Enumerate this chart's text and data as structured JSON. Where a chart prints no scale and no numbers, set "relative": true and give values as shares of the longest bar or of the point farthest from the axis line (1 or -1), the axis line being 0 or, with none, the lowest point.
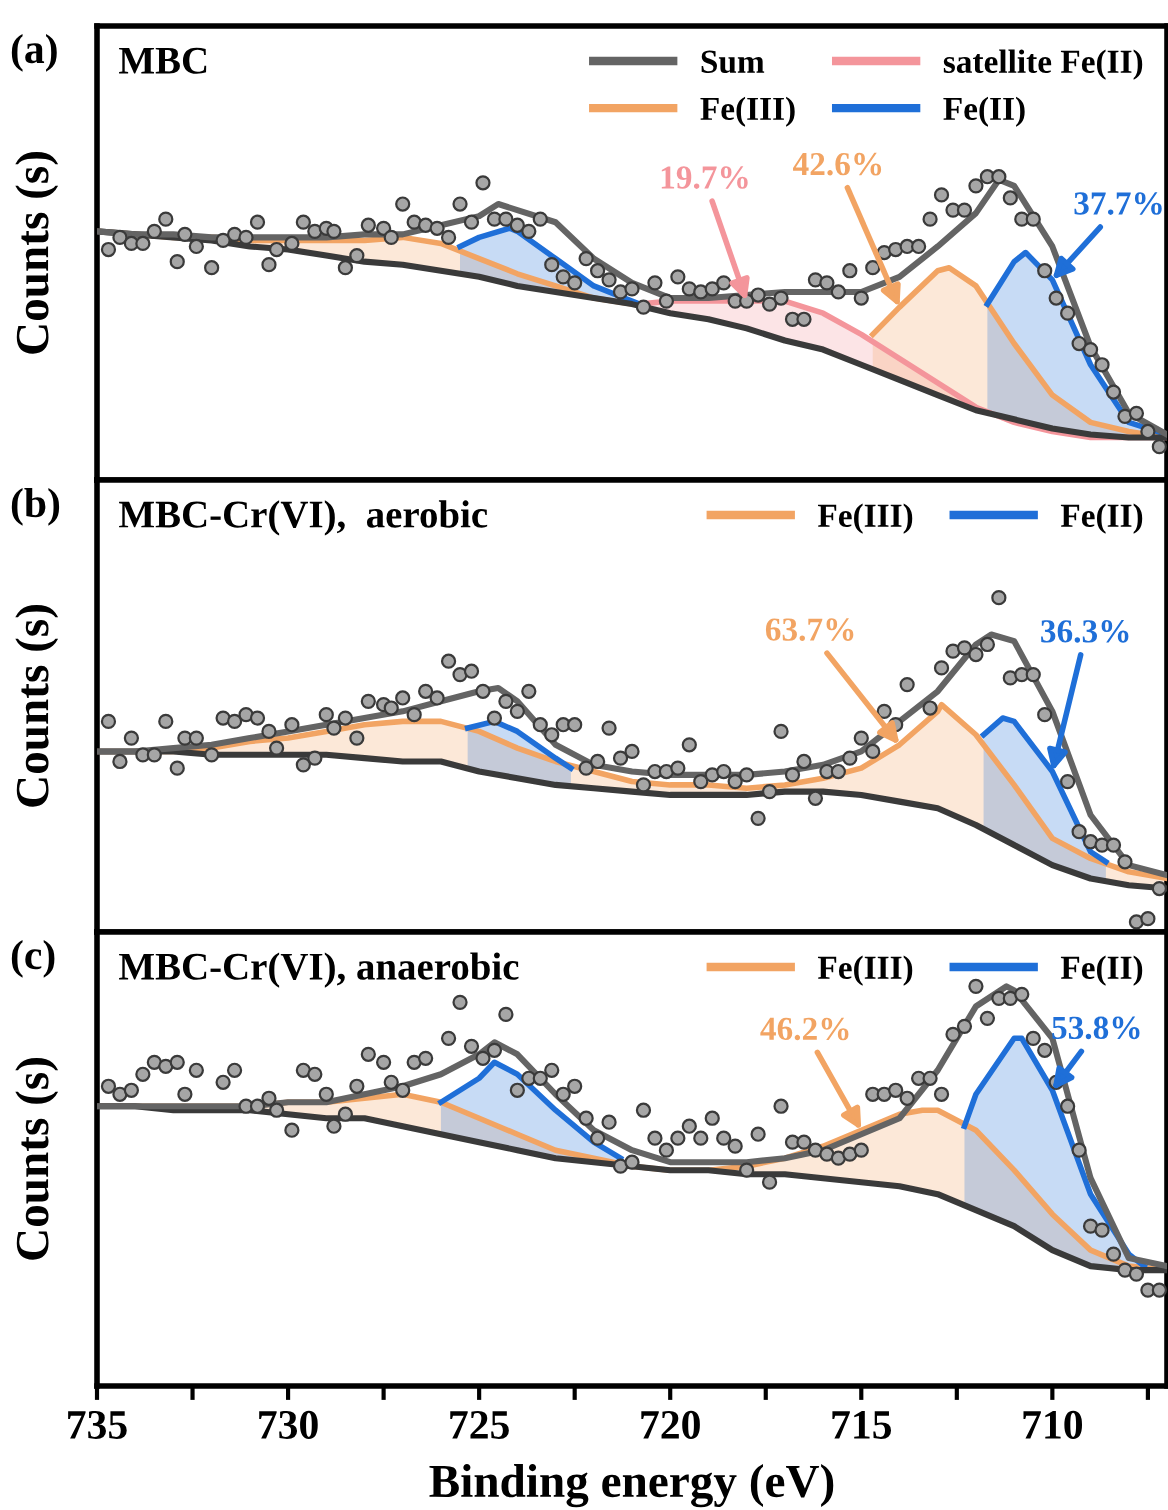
{
  "chart_data": [
    {
      "type": "line",
      "title": "MBC",
      "ylabel": "Counts (s)",
      "annotations": [
        "(a)",
        {
          "text": "19.7%",
          "x": 718,
          "y": 0.59
        },
        {
          "text": "42.6%",
          "x": 714,
          "y": 0.57
        },
        {
          "text": "37.7%",
          "x": 710,
          "y": 0.66
        }
      ],
      "relative": true,
      "xlim": [
        735,
        707
      ],
      "xticks": [
        735,
        730,
        725,
        720,
        715,
        710
      ],
      "tick_labels": false,
      "legend": "top right",
      "grid": false,
      "marker": "none",
      "line_style": "solid",
      "series": [
        {
          "type": "scatter",
          "marker": "circle",
          "color": "#a6a6a6",
          "x": [
            734.7,
            734.4,
            734.1,
            733.8,
            733.5,
            733.2,
            732.9,
            732.7,
            732.4,
            732.0,
            731.7,
            731.4,
            731.1,
            730.8,
            730.5,
            730.3,
            729.9,
            729.6,
            729.3,
            729.0,
            728.8,
            728.5,
            728.2,
            727.9,
            727.5,
            727.3,
            727.0,
            726.7,
            726.4,
            726.1,
            725.8,
            725.5,
            725.2,
            724.9,
            724.6,
            724.3,
            724.0,
            723.7,
            723.4,
            723.1,
            722.8,
            722.5,
            722.2,
            721.9,
            721.6,
            721.3,
            721.0,
            720.7,
            720.4,
            720.1,
            719.8,
            719.5,
            719.2,
            718.9,
            718.6,
            718.3,
            718.0,
            717.7,
            717.4,
            717.1,
            716.8,
            716.5,
            716.2,
            715.9,
            715.6,
            715.3,
            715.0,
            714.7,
            714.4,
            714.1,
            713.8,
            713.5,
            713.2,
            712.9,
            712.6,
            712.3,
            712.0,
            711.7,
            711.4,
            711.1,
            710.8,
            710.5,
            710.2,
            709.9,
            709.6,
            709.3,
            709.0,
            708.7,
            708.4,
            708.1,
            707.8,
            707.5,
            707.2
          ],
          "values": [
            0.76,
            0.8,
            0.78,
            0.78,
            0.82,
            0.86,
            0.72,
            0.81,
            0.77,
            0.7,
            0.79,
            0.81,
            0.8,
            0.85,
            0.71,
            0.76,
            0.78,
            0.85,
            0.82,
            0.83,
            0.82,
            0.7,
            0.74,
            0.84,
            0.83,
            0.8,
            0.91,
            0.85,
            0.84,
            0.83,
            0.8,
            0.91,
            0.85,
            0.98,
            0.86,
            0.86,
            0.84,
            0.82,
            0.86,
            0.71,
            0.67,
            0.65,
            0.73,
            0.69,
            0.66,
            0.62,
            0.63,
            0.57,
            0.65,
            0.59,
            0.67,
            0.63,
            0.62,
            0.63,
            0.65,
            0.59,
            0.59,
            0.61,
            0.58,
            0.6,
            0.53,
            0.53,
            0.66,
            0.65,
            0.62,
            0.69,
            0.6,
            0.7,
            0.75,
            0.76,
            0.77,
            0.77,
            0.86,
            0.94,
            0.89,
            0.89,
            0.97,
            1.0,
            1.0,
            0.93,
            0.86,
            0.86,
            0.69,
            0.6,
            0.55,
            0.45,
            0.43,
            0.38,
            0.29,
            0.21,
            0.22,
            0.16,
            0.11
          ]
        },
        {
          "type": "line",
          "color": "#3a3a3a",
          "x": [
            735,
            734,
            733,
            732,
            731,
            730,
            729,
            728,
            727,
            726,
            725,
            724,
            723,
            722,
            721,
            720,
            719,
            718,
            717,
            716,
            715,
            714,
            713,
            712,
            711,
            710,
            709,
            708,
            707
          ],
          "values": [
            0.82,
            0.81,
            0.8,
            0.79,
            0.77,
            0.76,
            0.74,
            0.72,
            0.71,
            0.69,
            0.67,
            0.64,
            0.62,
            0.6,
            0.58,
            0.55,
            0.53,
            0.5,
            0.46,
            0.43,
            0.38,
            0.33,
            0.28,
            0.23,
            0.2,
            0.17,
            0.15,
            0.14,
            0.14
          ]
        },
        {
          "type": "line",
          "name": "Sum",
          "color": "#646464",
          "x": [
            735,
            734,
            733,
            732,
            731,
            730,
            729,
            728,
            727,
            726,
            725,
            724.5,
            724,
            723,
            722,
            721,
            720,
            719,
            718,
            717,
            716,
            715,
            714,
            713,
            712,
            711.4,
            711,
            710,
            709,
            708,
            707
          ],
          "values": [
            0.82,
            0.81,
            0.81,
            0.8,
            0.8,
            0.8,
            0.8,
            0.81,
            0.81,
            0.84,
            0.87,
            0.91,
            0.89,
            0.85,
            0.73,
            0.65,
            0.6,
            0.6,
            0.61,
            0.62,
            0.62,
            0.62,
            0.67,
            0.77,
            0.88,
            0.99,
            0.97,
            0.77,
            0.44,
            0.22,
            0.15
          ]
        },
        {
          "type": "area",
          "name": "satellite Fe(II)",
          "color": "#f4959b",
          "x": [
            720.8,
            720,
            719,
            718,
            717,
            716,
            715,
            714,
            713,
            712,
            711,
            710,
            709,
            708,
            707
          ],
          "values": [
            0.58,
            0.59,
            0.59,
            0.59,
            0.59,
            0.55,
            0.48,
            0.4,
            0.32,
            0.24,
            0.19,
            0.16,
            0.14,
            0.14,
            0.14
          ]
        },
        {
          "type": "area",
          "name": "Fe(III)",
          "color": "#f2a463",
          "x": [
            735,
            734,
            733,
            732,
            731,
            730,
            729,
            728,
            727,
            726,
            725,
            724,
            723,
            722,
            721,
            720.8,
            null,
            714.7,
            714,
            713,
            712.7,
            712,
            711,
            710,
            709,
            708,
            707
          ],
          "values": [
            0.82,
            0.81,
            0.8,
            0.8,
            0.79,
            0.79,
            0.79,
            0.79,
            0.8,
            0.78,
            0.73,
            0.68,
            0.64,
            0.6,
            0.58,
            0.58,
            null,
            0.48,
            0.57,
            0.69,
            0.7,
            0.64,
            0.45,
            0.28,
            0.19,
            0.16,
            0.14
          ]
        },
        {
          "type": "area",
          "name": "Fe(II)",
          "color": "#1f6fd8",
          "x": [
            725.5,
            725,
            724.2,
            724,
            723,
            722,
            721,
            720.8,
            null,
            711.7,
            711,
            710.7,
            710,
            709,
            708,
            707
          ],
          "values": [
            0.77,
            0.8,
            0.83,
            0.82,
            0.73,
            0.64,
            0.59,
            0.58,
            null,
            0.58,
            0.72,
            0.75,
            0.66,
            0.38,
            0.19,
            0.15
          ]
        }
      ]
    },
    {
      "type": "line",
      "title": "MBC-Cr(VI),  aerobic",
      "ylabel": "Counts (s)",
      "annotations": [
        "(b)",
        {
          "text": "63.7%",
          "x": 714,
          "y": 0.56
        },
        {
          "text": "36.3%",
          "x": 710,
          "y": 0.48
        }
      ],
      "relative": true,
      "xlim": [
        735,
        707
      ],
      "xticks": [
        735,
        730,
        725,
        720,
        715,
        710
      ],
      "tick_labels": false,
      "legend": "top right",
      "grid": false,
      "marker": "none",
      "line_style": "solid",
      "series": [
        {
          "type": "scatter",
          "marker": "circle",
          "color": "#a6a6a6",
          "x": [
            734.7,
            734.4,
            734.1,
            733.8,
            733.5,
            733.2,
            732.9,
            732.7,
            732.4,
            732.0,
            731.7,
            731.4,
            731.1,
            730.8,
            730.5,
            730.3,
            729.9,
            729.6,
            729.3,
            729.0,
            728.8,
            728.5,
            728.2,
            727.9,
            727.5,
            727.3,
            727.0,
            726.7,
            726.4,
            726.1,
            725.8,
            725.5,
            725.2,
            724.9,
            724.6,
            724.3,
            724.0,
            723.7,
            723.4,
            723.1,
            722.8,
            722.5,
            722.2,
            721.9,
            721.6,
            721.3,
            721.0,
            720.7,
            720.4,
            720.1,
            719.8,
            719.5,
            719.2,
            718.9,
            718.6,
            718.3,
            718.0,
            717.7,
            717.4,
            717.1,
            716.8,
            716.5,
            716.2,
            715.9,
            715.6,
            715.3,
            715.0,
            714.7,
            714.4,
            714.1,
            713.8,
            713.2,
            712.9,
            712.6,
            712.3,
            712.0,
            711.7,
            711.4,
            711.1,
            710.8,
            710.5,
            710.2,
            709.6,
            709.3,
            709.0,
            708.7,
            708.4,
            708.1,
            707.8,
            707.5,
            707.2
          ],
          "values": [
            0.63,
            0.51,
            0.58,
            0.53,
            0.53,
            0.63,
            0.49,
            0.58,
            0.58,
            0.53,
            0.64,
            0.63,
            0.65,
            0.64,
            0.6,
            0.55,
            0.62,
            0.5,
            0.52,
            0.65,
            0.61,
            0.64,
            0.58,
            0.69,
            0.68,
            0.67,
            0.7,
            0.65,
            0.72,
            0.7,
            0.81,
            0.77,
            0.78,
            0.72,
            0.64,
            0.69,
            0.66,
            0.72,
            0.62,
            0.59,
            0.62,
            0.62,
            0.49,
            0.51,
            0.61,
            0.52,
            0.54,
            0.44,
            0.48,
            0.48,
            0.49,
            0.56,
            0.45,
            0.47,
            0.48,
            0.45,
            0.47,
            0.34,
            0.42,
            0.6,
            0.47,
            0.51,
            0.4,
            0.48,
            0.48,
            0.52,
            0.58,
            0.54,
            0.66,
            0.62,
            0.74,
            0.67,
            0.79,
            0.84,
            0.85,
            0.83,
            0.86,
            1.0,
            0.76,
            0.77,
            0.77,
            0.65,
            0.45,
            0.3,
            0.27,
            0.26,
            0.26,
            0.21,
            0.03,
            0.04,
            0.13
          ]
        },
        {
          "type": "line",
          "color": "#3a3a3a",
          "x": [
            735,
            734,
            733,
            732,
            731,
            730,
            729,
            728,
            727,
            726,
            725,
            724,
            723,
            722,
            721,
            720,
            719,
            718,
            717,
            716,
            715,
            714,
            713,
            712,
            711,
            710,
            709,
            708,
            707
          ],
          "values": [
            0.54,
            0.54,
            0.54,
            0.53,
            0.53,
            0.53,
            0.53,
            0.52,
            0.51,
            0.51,
            0.48,
            0.46,
            0.44,
            0.43,
            0.42,
            0.41,
            0.41,
            0.41,
            0.42,
            0.42,
            0.41,
            0.39,
            0.37,
            0.32,
            0.26,
            0.2,
            0.16,
            0.14,
            0.13
          ]
        },
        {
          "type": "area",
          "name": "Fe(III)",
          "color": "#f2a463",
          "x": [
            735,
            734,
            733,
            732,
            731,
            730,
            729,
            728,
            727,
            726,
            725,
            724,
            723,
            722,
            721,
            720,
            719,
            718,
            717,
            716,
            715,
            714,
            713,
            712.9,
            712,
            711,
            710,
            709,
            708,
            707
          ],
          "values": [
            0.54,
            0.54,
            0.54,
            0.55,
            0.57,
            0.58,
            0.6,
            0.62,
            0.63,
            0.63,
            0.6,
            0.55,
            0.51,
            0.48,
            0.45,
            0.44,
            0.44,
            0.43,
            0.44,
            0.46,
            0.49,
            0.56,
            0.66,
            0.68,
            0.59,
            0.44,
            0.28,
            0.22,
            0.18,
            0.16
          ]
        },
        {
          "type": "area",
          "name": "Fe(II)",
          "color": "#1f6fd8",
          "x": [
            725.3,
            724.6,
            724,
            723,
            722.6,
            null,
            711.8,
            711.3,
            711,
            710,
            709,
            708.6
          ],
          "values": [
            0.61,
            0.63,
            0.6,
            0.52,
            0.49,
            null,
            0.59,
            0.64,
            0.63,
            0.48,
            0.24,
            0.21
          ]
        },
        {
          "type": "line",
          "color": "#646464",
          "x": [
            735,
            734,
            733,
            732,
            731,
            730,
            729,
            728,
            727,
            726,
            725,
            724.5,
            724,
            723,
            722,
            721,
            720,
            719,
            718,
            717,
            716,
            715,
            714,
            713,
            712,
            711.6,
            711,
            710,
            709,
            708,
            707
          ],
          "values": [
            0.54,
            0.54,
            0.55,
            0.56,
            0.58,
            0.6,
            0.62,
            0.64,
            0.66,
            0.69,
            0.72,
            0.73,
            0.69,
            0.56,
            0.5,
            0.48,
            0.47,
            0.47,
            0.47,
            0.48,
            0.5,
            0.54,
            0.63,
            0.72,
            0.86,
            0.89,
            0.87,
            0.66,
            0.35,
            0.2,
            0.17
          ]
        }
      ]
    },
    {
      "type": "line",
      "title": "MBC-Cr(VI), anaerobic",
      "ylabel": "Counts (s)",
      "xlabel": "Binding energy (eV)",
      "annotations": [
        "(c)",
        {
          "text": "46.2%",
          "x": 715,
          "y": 0.64
        },
        {
          "text": "53.8%",
          "x": 710,
          "y": 0.74
        }
      ],
      "relative": true,
      "xlim": [
        735,
        707
      ],
      "xticks": [
        735,
        {
          "value": 732.5,
          "label": null
        },
        730,
        {
          "value": 727.5,
          "label": null
        },
        725,
        {
          "value": 722.5,
          "label": null
        },
        720,
        {
          "value": 717.5,
          "label": null
        },
        715,
        {
          "value": 712.5,
          "label": null
        },
        710,
        {
          "value": 707.5,
          "label": null
        }
      ],
      "tick_labels": "x",
      "legend": "top right",
      "grid": false,
      "marker": "none",
      "line_style": "solid",
      "series": [
        {
          "type": "scatter",
          "marker": "circle",
          "color": "#a6a6a6",
          "x": [
            734.7,
            734.4,
            734.1,
            733.8,
            733.5,
            733.2,
            732.9,
            732.7,
            732.4,
            731.7,
            731.4,
            731.1,
            730.8,
            730.5,
            730.3,
            729.9,
            729.6,
            729.3,
            729.0,
            728.8,
            728.5,
            728.2,
            727.9,
            727.5,
            727.3,
            727.0,
            726.7,
            726.4,
            725.8,
            725.5,
            725.2,
            724.9,
            724.6,
            724.3,
            724.0,
            723.7,
            723.4,
            723.1,
            722.8,
            722.5,
            722.2,
            721.9,
            721.6,
            721.3,
            721.0,
            720.7,
            720.4,
            720.1,
            719.8,
            719.5,
            719.2,
            718.9,
            718.6,
            718.3,
            718.0,
            717.7,
            717.4,
            717.1,
            716.8,
            716.5,
            716.2,
            715.9,
            715.6,
            715.3,
            715.0,
            714.7,
            714.4,
            714.1,
            713.8,
            713.5,
            713.2,
            712.9,
            712.6,
            712.3,
            712.0,
            711.7,
            711.4,
            711.1,
            710.8,
            710.5,
            710.2,
            709.9,
            709.6,
            709.3,
            709.0,
            708.7,
            708.4,
            708.1,
            707.8,
            707.5,
            707.2
          ],
          "values": [
            0.75,
            0.73,
            0.74,
            0.78,
            0.81,
            0.8,
            0.81,
            0.73,
            0.79,
            0.76,
            0.79,
            0.7,
            0.7,
            0.72,
            0.69,
            0.64,
            0.79,
            0.78,
            0.73,
            0.65,
            0.68,
            0.75,
            0.83,
            0.81,
            0.76,
            0.74,
            0.81,
            0.82,
            0.87,
            0.96,
            0.85,
            0.82,
            0.84,
            0.93,
            0.74,
            0.77,
            0.77,
            0.79,
            0.73,
            0.75,
            0.67,
            0.62,
            0.66,
            0.55,
            0.56,
            0.69,
            0.62,
            0.59,
            0.62,
            0.65,
            0.62,
            0.67,
            0.62,
            0.6,
            0.54,
            0.63,
            0.51,
            0.7,
            0.61,
            0.61,
            0.59,
            0.58,
            0.57,
            0.58,
            0.59,
            0.73,
            0.73,
            0.74,
            0.72,
            0.77,
            0.77,
            0.73,
            0.88,
            0.9,
            1.0,
            0.92,
            0.97,
            0.97,
            0.98,
            0.87,
            0.84,
            0.76,
            0.7,
            0.59,
            0.4,
            0.39,
            0.33,
            0.29,
            0.28,
            0.24,
            0.24
          ]
        },
        {
          "type": "line",
          "color": "#3a3a3a",
          "x": [
            735,
            734,
            733,
            732,
            731,
            730,
            729,
            728,
            727,
            726,
            725,
            724,
            723,
            722,
            721,
            720,
            719,
            718,
            717,
            716,
            715,
            714,
            713,
            712,
            711,
            710,
            709,
            708,
            707
          ],
          "values": [
            0.7,
            0.7,
            0.69,
            0.69,
            0.69,
            0.68,
            0.67,
            0.67,
            0.65,
            0.63,
            0.61,
            0.59,
            0.57,
            0.56,
            0.55,
            0.54,
            0.54,
            0.53,
            0.53,
            0.52,
            0.51,
            0.5,
            0.48,
            0.44,
            0.4,
            0.34,
            0.3,
            0.29,
            0.29
          ]
        },
        {
          "type": "area",
          "name": "Fe(III)",
          "color": "#f2a463",
          "x": [
            735,
            734,
            733,
            732,
            731,
            730,
            729,
            728,
            727,
            726,
            725,
            724,
            723,
            722,
            721,
            720,
            719,
            718,
            717,
            716,
            715,
            714,
            713.4,
            713,
            712,
            711,
            710,
            709,
            708,
            707
          ],
          "values": [
            0.7,
            0.7,
            0.7,
            0.7,
            0.7,
            0.71,
            0.71,
            0.72,
            0.73,
            0.71,
            0.67,
            0.63,
            0.59,
            0.57,
            0.55,
            0.54,
            0.54,
            0.55,
            0.57,
            0.6,
            0.64,
            0.68,
            0.69,
            0.69,
            0.64,
            0.54,
            0.43,
            0.34,
            0.3,
            0.29
          ]
        },
        {
          "type": "area",
          "name": "Fe(II)",
          "color": "#1f6fd8",
          "x": [
            726,
            725,
            724.6,
            724,
            723,
            722,
            721.3,
            null,
            712.3,
            712,
            711,
            710.8,
            710,
            709,
            708,
            707.6
          ],
          "values": [
            0.71,
            0.77,
            0.81,
            0.78,
            0.69,
            0.61,
            0.57,
            null,
            0.65,
            0.73,
            0.87,
            0.87,
            0.74,
            0.48,
            0.33,
            0.3
          ]
        },
        {
          "type": "line",
          "color": "#646464",
          "x": [
            735,
            734,
            733,
            732,
            731,
            730,
            729,
            728,
            727,
            726,
            725,
            724.6,
            724,
            723,
            722,
            721,
            720,
            719,
            718,
            717,
            716,
            715,
            714,
            713,
            712,
            711.2,
            711,
            710,
            709,
            708,
            707
          ],
          "values": [
            0.7,
            0.7,
            0.7,
            0.7,
            0.7,
            0.71,
            0.71,
            0.73,
            0.75,
            0.78,
            0.83,
            0.86,
            0.83,
            0.73,
            0.64,
            0.59,
            0.56,
            0.56,
            0.56,
            0.57,
            0.59,
            0.63,
            0.67,
            0.79,
            0.95,
            1.0,
            0.99,
            0.87,
            0.52,
            0.32,
            0.3
          ]
        }
      ]
    }
  ]
}
